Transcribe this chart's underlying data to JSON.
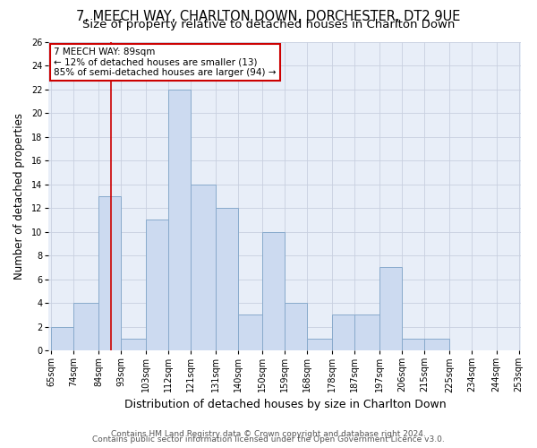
{
  "title": "7, MEECH WAY, CHARLTON DOWN, DORCHESTER, DT2 9UE",
  "subtitle": "Size of property relative to detached houses in Charlton Down",
  "xlabel": "Distribution of detached houses by size in Charlton Down",
  "ylabel": "Number of detached properties",
  "bar_edges": [
    65,
    74,
    84,
    93,
    103,
    112,
    121,
    131,
    140,
    150,
    159,
    168,
    178,
    187,
    197,
    206,
    215,
    225,
    234,
    244,
    253
  ],
  "bar_heights": [
    2,
    4,
    13,
    1,
    11,
    22,
    14,
    12,
    3,
    10,
    4,
    1,
    3,
    3,
    7,
    1,
    1,
    0,
    0,
    0
  ],
  "bar_color": "#ccdaf0",
  "bar_edge_color": "#88aacc",
  "reference_line_x": 89,
  "reference_line_color": "#cc0000",
  "annotation_title": "7 MEECH WAY: 89sqm",
  "annotation_line1": "← 12% of detached houses are smaller (13)",
  "annotation_line2": "85% of semi-detached houses are larger (94) →",
  "annotation_box_facecolor": "#ffffff",
  "annotation_box_edgecolor": "#cc0000",
  "ylim": [
    0,
    26
  ],
  "yticks": [
    0,
    2,
    4,
    6,
    8,
    10,
    12,
    14,
    16,
    18,
    20,
    22,
    24,
    26
  ],
  "x_tick_labels": [
    "65sqm",
    "74sqm",
    "84sqm",
    "93sqm",
    "103sqm",
    "112sqm",
    "121sqm",
    "131sqm",
    "140sqm",
    "150sqm",
    "159sqm",
    "168sqm",
    "178sqm",
    "187sqm",
    "197sqm",
    "206sqm",
    "215sqm",
    "225sqm",
    "234sqm",
    "244sqm",
    "253sqm"
  ],
  "footer_line1": "Contains HM Land Registry data © Crown copyright and database right 2024.",
  "footer_line2": "Contains public sector information licensed under the Open Government Licence v3.0.",
  "background_color": "#ffffff",
  "plot_bg_color": "#e8eef8",
  "grid_color": "#c8d0e0",
  "title_fontsize": 10.5,
  "subtitle_fontsize": 9.5,
  "xlabel_fontsize": 9,
  "ylabel_fontsize": 8.5,
  "tick_fontsize": 7,
  "annotation_fontsize": 7.5,
  "footer_fontsize": 6.5
}
